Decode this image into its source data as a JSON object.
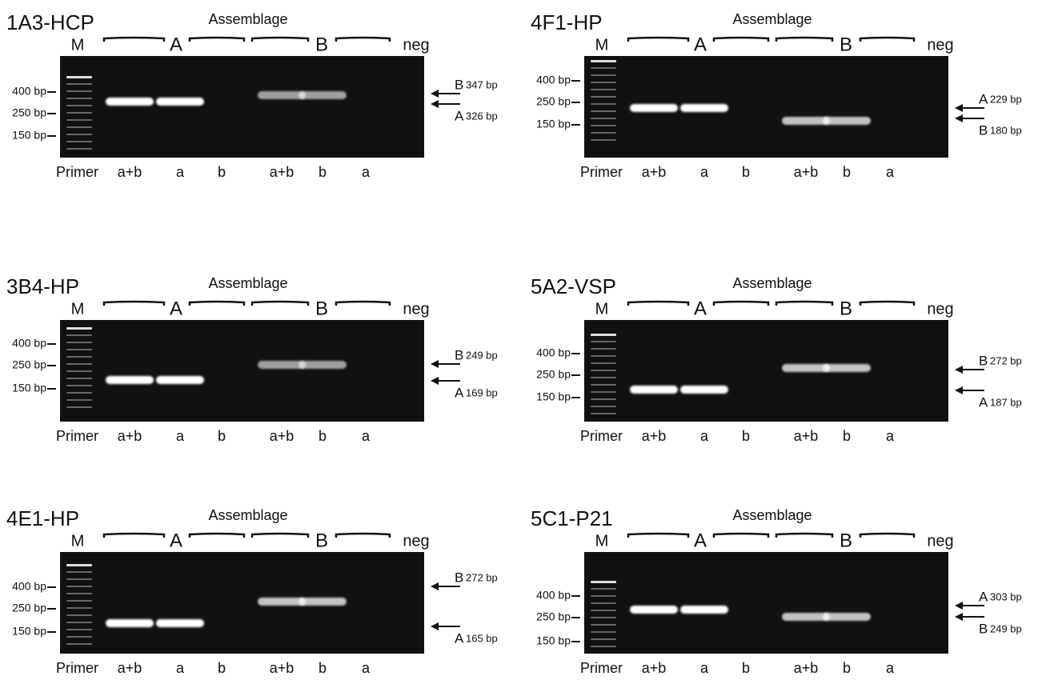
{
  "panels": [
    {
      "title": "1A3-HCP",
      "assemblage": "Assemblage",
      "header": [
        "M",
        "A",
        "B",
        "neg"
      ],
      "ladder": [
        "400 bp",
        "250 bp",
        "150 bp"
      ],
      "markers": [
        {
          "letter": "B",
          "size": "347 bp"
        },
        {
          "letter": "A",
          "size": "326 bp"
        }
      ],
      "primer_label": "Primer",
      "primers": [
        "a+b",
        "a",
        "b",
        "a+b",
        "b",
        "a"
      ]
    },
    {
      "title": "4F1-HP",
      "assemblage": "Assemblage",
      "header": [
        "M",
        "A",
        "B",
        "neg"
      ],
      "ladder": [
        "400 bp",
        "250 bp",
        "150 bp"
      ],
      "markers": [
        {
          "letter": "A",
          "size": "229 bp"
        },
        {
          "letter": "B",
          "size": "180 bp"
        }
      ],
      "primer_label": "Primer",
      "primers": [
        "a+b",
        "a",
        "b",
        "a+b",
        "b",
        "a"
      ]
    },
    {
      "title": "3B4-HP",
      "assemblage": "Assemblage",
      "header": [
        "M",
        "A",
        "B",
        "neg"
      ],
      "ladder": [
        "400 bp",
        "250 bp",
        "150 bp"
      ],
      "markers": [
        {
          "letter": "B",
          "size": "249 bp"
        },
        {
          "letter": "A",
          "size": "169 bp"
        }
      ],
      "primer_label": "Primer",
      "primers": [
        "a+b",
        "a",
        "b",
        "a+b",
        "b",
        "a"
      ]
    },
    {
      "title": "5A2-VSP",
      "assemblage": "Assemblage",
      "header": [
        "M",
        "A",
        "B",
        "neg"
      ],
      "ladder": [
        "400 bp",
        "250 bp",
        "150 bp"
      ],
      "markers": [
        {
          "letter": "B",
          "size": "272 bp"
        },
        {
          "letter": "A",
          "size": "187 bp"
        }
      ],
      "primer_label": "Primer",
      "primers": [
        "a+b",
        "a",
        "b",
        "a+b",
        "b",
        "a"
      ]
    },
    {
      "title": "4E1-HP",
      "assemblage": "Assemblage",
      "header": [
        "M",
        "A",
        "B",
        "neg"
      ],
      "ladder": [
        "400 bp",
        "250 bp",
        "150 bp"
      ],
      "markers": [
        {
          "letter": "B",
          "size": "272 bp"
        },
        {
          "letter": "A",
          "size": "165 bp"
        }
      ],
      "primer_label": "Primer",
      "primers": [
        "a+b",
        "a",
        "b",
        "a+b",
        "b",
        "a"
      ]
    },
    {
      "title": "5C1-P21",
      "assemblage": "Assemblage",
      "header": [
        "M",
        "A",
        "B",
        "neg"
      ],
      "ladder": [
        "400 bp",
        "250 bp",
        "150 bp"
      ],
      "markers": [
        {
          "letter": "A",
          "size": "303 bp"
        },
        {
          "letter": "B",
          "size": "249 bp"
        }
      ],
      "primer_label": "Primer",
      "primers": [
        "a+b",
        "a",
        "b",
        "a+b",
        "b",
        "a"
      ]
    }
  ]
}
